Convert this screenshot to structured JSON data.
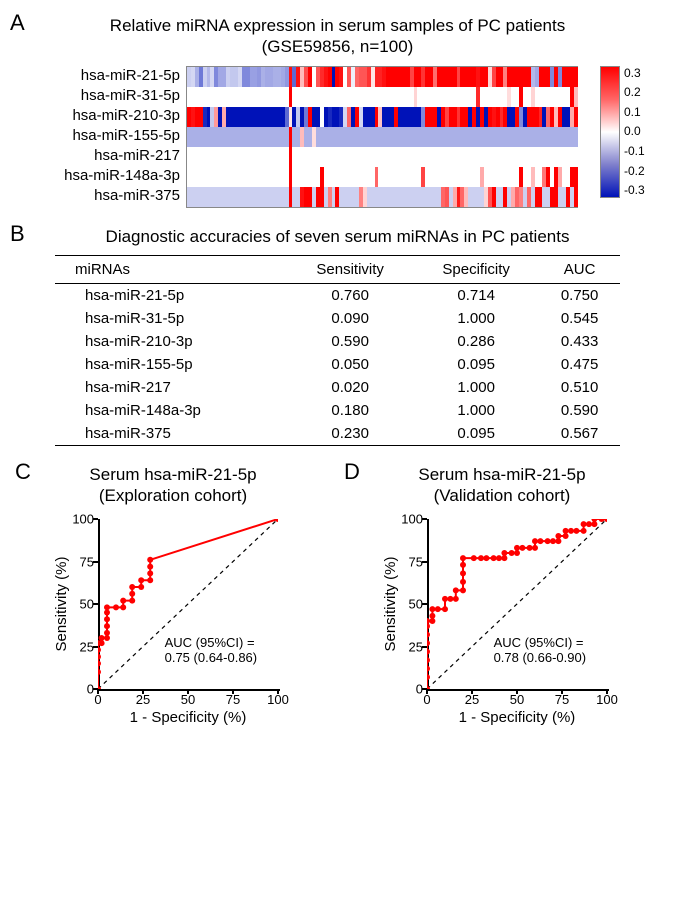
{
  "panelA": {
    "label": "A",
    "title_line1": "Relative miRNA expression in serum samples of PC patients",
    "title_line2": "(GSE59856, n=100)",
    "row_labels": [
      "hsa-miR-21-5p",
      "hsa-miR-31-5p",
      "hsa-miR-210-3p",
      "hsa-miR-155-5p",
      "hsa-miR-217",
      "hsa-miR-148a-3p",
      "hsa-miR-375"
    ],
    "legend_ticks": [
      "0.3",
      "0.2",
      "0.1",
      "0.0",
      "-0.1",
      "-0.2",
      "-0.3"
    ],
    "color_lo": "#0012b8",
    "color_mid": "#ffffff",
    "color_hi": "#ff0000",
    "n_cols": 100,
    "rows_values": [
      [
        -0.06,
        -0.05,
        -0.1,
        -0.17,
        -0.06,
        -0.09,
        -0.05,
        -0.15,
        -0.11,
        -0.11,
        -0.06,
        -0.07,
        -0.07,
        -0.05,
        -0.15,
        -0.15,
        -0.12,
        -0.12,
        -0.13,
        -0.1,
        -0.11,
        -0.11,
        -0.1,
        -0.1,
        -0.11,
        -0.13,
        0.28,
        -0.19,
        0.28,
        0.08,
        0.21,
        0.3,
        0.0,
        0.2,
        0.25,
        0.28,
        0.3,
        -0.3,
        0.3,
        0.28,
        0.0,
        0.2,
        -0.02,
        0.18,
        0.2,
        0.2,
        0.24,
        0.03,
        0.26,
        0.26,
        0.28,
        0.3,
        0.3,
        0.3,
        0.3,
        0.3,
        0.3,
        0.22,
        0.3,
        0.3,
        0.24,
        0.3,
        0.3,
        0.17,
        0.3,
        0.3,
        0.3,
        0.3,
        0.3,
        0.22,
        0.3,
        0.3,
        0.3,
        0.3,
        0.28,
        0.3,
        0.3,
        0.05,
        0.22,
        0.3,
        0.3,
        0.15,
        0.3,
        0.3,
        0.3,
        0.3,
        0.3,
        0.3,
        -0.09,
        -0.11,
        0.3,
        0.3,
        0.3,
        -0.15,
        0.3,
        -0.15,
        0.3,
        0.3,
        0.3,
        0.3
      ],
      [
        0.0,
        0.0,
        0.0,
        0.0,
        0.0,
        0.0,
        0.0,
        0.0,
        0.0,
        0.0,
        0.0,
        0.0,
        0.0,
        0.0,
        0.0,
        0.0,
        0.0,
        0.0,
        0.0,
        0.0,
        0.0,
        0.0,
        0.0,
        0.0,
        0.0,
        0.0,
        0.3,
        0.0,
        0.0,
        0.0,
        0.0,
        0.0,
        0.0,
        0.0,
        0.0,
        0.0,
        0.0,
        0.0,
        0.0,
        0.0,
        0.0,
        0.0,
        0.0,
        0.0,
        0.0,
        0.0,
        0.0,
        0.0,
        0.0,
        0.0,
        0.0,
        0.0,
        0.0,
        0.0,
        0.0,
        0.0,
        0.0,
        0.0,
        0.05,
        0.0,
        0.0,
        0.0,
        0.0,
        0.0,
        0.0,
        0.0,
        0.0,
        0.0,
        0.0,
        0.0,
        0.0,
        0.0,
        0.0,
        0.0,
        0.25,
        0.0,
        0.0,
        0.0,
        0.0,
        0.0,
        0.0,
        0.0,
        0.04,
        0.0,
        0.0,
        0.3,
        0.0,
        0.0,
        0.05,
        0.0,
        0.0,
        0.0,
        0.0,
        0.0,
        0.0,
        0.0,
        0.0,
        0.0,
        0.3,
        0.08
      ],
      [
        0.3,
        0.28,
        0.3,
        0.3,
        -0.27,
        -0.3,
        -0.07,
        0.12,
        -0.3,
        0.1,
        -0.3,
        -0.3,
        -0.3,
        -0.3,
        -0.3,
        -0.3,
        -0.3,
        -0.3,
        -0.3,
        -0.3,
        -0.3,
        -0.3,
        -0.3,
        -0.3,
        -0.3,
        -0.19,
        0.03,
        -0.3,
        -0.07,
        -0.3,
        -0.17,
        0.3,
        -0.3,
        -0.3,
        0.0,
        -0.3,
        -0.27,
        -0.3,
        -0.3,
        -0.27,
        -0.05,
        0.18,
        -0.3,
        0.3,
        -0.05,
        -0.3,
        -0.3,
        -0.3,
        0.3,
        0.07,
        -0.3,
        -0.3,
        -0.3,
        0.3,
        -0.3,
        -0.3,
        -0.3,
        -0.3,
        -0.3,
        -0.3,
        -0.15,
        0.3,
        0.3,
        0.3,
        -0.3,
        0.3,
        0.22,
        0.3,
        0.3,
        0.24,
        0.3,
        0.3,
        -0.3,
        0.3,
        -0.3,
        0.3,
        -0.3,
        0.3,
        0.28,
        0.3,
        0.25,
        0.3,
        -0.3,
        -0.3,
        0.3,
        -0.15,
        -0.3,
        0.3,
        0.3,
        0.3,
        0.26,
        -0.3,
        0.18,
        0.3,
        0.08,
        0.3,
        -0.3,
        -0.3,
        0.1,
        0.3
      ],
      [
        -0.1,
        -0.1,
        -0.1,
        -0.1,
        -0.1,
        -0.1,
        -0.1,
        -0.1,
        -0.1,
        -0.1,
        -0.1,
        -0.1,
        -0.1,
        -0.1,
        -0.1,
        -0.1,
        -0.1,
        -0.1,
        -0.1,
        -0.1,
        -0.1,
        -0.1,
        -0.1,
        -0.1,
        -0.1,
        -0.1,
        0.3,
        -0.1,
        -0.1,
        0.08,
        -0.1,
        -0.1,
        0.04,
        -0.1,
        -0.1,
        -0.1,
        -0.1,
        -0.1,
        -0.1,
        -0.1,
        -0.1,
        -0.1,
        -0.1,
        -0.1,
        -0.1,
        -0.1,
        -0.1,
        -0.1,
        -0.1,
        -0.1,
        -0.1,
        -0.1,
        -0.1,
        -0.1,
        -0.1,
        -0.1,
        -0.1,
        -0.1,
        -0.1,
        -0.1,
        -0.1,
        -0.1,
        -0.1,
        -0.1,
        -0.1,
        -0.1,
        -0.1,
        -0.1,
        -0.1,
        -0.1,
        -0.1,
        -0.1,
        -0.1,
        -0.1,
        -0.1,
        -0.1,
        -0.1,
        -0.1,
        -0.1,
        -0.1,
        -0.1,
        -0.1,
        -0.1,
        -0.1,
        -0.1,
        -0.1,
        -0.1,
        -0.1,
        -0.1,
        -0.1,
        -0.1,
        -0.1,
        -0.1,
        -0.1,
        -0.1,
        -0.1,
        -0.1,
        -0.1,
        -0.1,
        -0.1
      ],
      [
        0.0,
        0.0,
        0.0,
        0.0,
        0.0,
        0.0,
        0.0,
        0.0,
        0.0,
        0.0,
        0.0,
        0.0,
        0.0,
        0.0,
        0.0,
        0.0,
        0.0,
        0.0,
        0.0,
        0.0,
        0.0,
        0.0,
        0.0,
        0.0,
        0.0,
        0.0,
        0.3,
        0.0,
        0.0,
        0.0,
        0.0,
        0.0,
        0.0,
        0.0,
        0.0,
        0.0,
        0.0,
        0.0,
        0.0,
        0.0,
        0.0,
        0.0,
        0.0,
        0.0,
        0.0,
        0.0,
        0.0,
        0.0,
        0.0,
        0.0,
        0.0,
        0.0,
        0.0,
        0.0,
        0.0,
        0.0,
        0.0,
        0.0,
        0.0,
        0.0,
        0.0,
        0.0,
        0.0,
        0.0,
        0.0,
        0.0,
        0.0,
        0.0,
        0.0,
        0.0,
        0.0,
        0.0,
        0.0,
        0.0,
        0.0,
        0.0,
        0.0,
        0.0,
        0.0,
        0.0,
        0.0,
        0.0,
        0.0,
        0.0,
        0.0,
        0.0,
        0.0,
        0.0,
        0.0,
        0.0,
        0.0,
        0.0,
        0.0,
        0.0,
        0.0,
        0.0,
        0.0,
        0.0,
        0.0,
        0.0
      ],
      [
        0.0,
        0.0,
        0.0,
        0.0,
        0.0,
        0.0,
        0.0,
        0.0,
        0.0,
        0.0,
        0.0,
        0.0,
        0.0,
        0.0,
        0.0,
        0.0,
        0.0,
        0.0,
        0.0,
        0.0,
        0.0,
        0.0,
        0.0,
        0.0,
        0.0,
        0.0,
        0.3,
        0.0,
        0.0,
        0.0,
        0.0,
        0.0,
        0.0,
        0.0,
        0.3,
        0.0,
        0.0,
        0.0,
        0.0,
        0.0,
        0.0,
        0.0,
        0.0,
        0.0,
        0.0,
        0.0,
        0.0,
        0.0,
        0.18,
        0.0,
        0.0,
        0.0,
        0.0,
        0.0,
        0.0,
        0.0,
        0.0,
        0.0,
        0.0,
        0.0,
        0.22,
        0.0,
        0.0,
        0.0,
        0.0,
        0.0,
        0.0,
        0.0,
        0.0,
        0.0,
        0.0,
        0.0,
        0.0,
        0.0,
        0.0,
        0.1,
        0.0,
        0.0,
        0.0,
        0.0,
        0.0,
        0.0,
        0.0,
        0.0,
        0.0,
        0.3,
        0.0,
        0.0,
        0.08,
        0.0,
        0.0,
        0.16,
        0.3,
        0.0,
        0.3,
        0.1,
        0.0,
        0.0,
        0.3,
        0.3
      ],
      [
        -0.06,
        -0.06,
        -0.06,
        -0.06,
        -0.06,
        -0.06,
        -0.06,
        -0.06,
        -0.06,
        -0.06,
        -0.06,
        -0.06,
        -0.06,
        -0.06,
        -0.06,
        -0.06,
        -0.06,
        -0.06,
        -0.06,
        -0.06,
        -0.06,
        -0.06,
        -0.06,
        -0.06,
        -0.06,
        -0.06,
        0.3,
        -0.06,
        -0.06,
        0.28,
        0.3,
        0.3,
        -0.06,
        0.3,
        0.3,
        -0.06,
        0.15,
        -0.06,
        0.3,
        -0.06,
        -0.06,
        -0.06,
        -0.06,
        -0.06,
        0.15,
        0.05,
        -0.06,
        -0.06,
        -0.06,
        -0.06,
        -0.06,
        -0.06,
        -0.06,
        -0.06,
        -0.06,
        -0.06,
        -0.06,
        -0.06,
        -0.06,
        -0.06,
        -0.06,
        -0.06,
        -0.06,
        -0.06,
        -0.06,
        0.18,
        0.2,
        -0.06,
        0.1,
        0.27,
        0.18,
        0.08,
        -0.06,
        -0.06,
        -0.06,
        -0.06,
        0.05,
        0.2,
        0.3,
        -0.06,
        -0.06,
        0.3,
        -0.06,
        0.1,
        0.18,
        0.15,
        -0.06,
        0.18,
        -0.06,
        0.3,
        0.3,
        -0.06,
        -0.06,
        0.3,
        0.3,
        -0.06,
        -0.06,
        0.3,
        -0.06,
        0.3
      ]
    ]
  },
  "panelB": {
    "label": "B",
    "title": "Diagnostic accuracies of seven serum miRNAs in PC patients",
    "columns": [
      "miRNAs",
      "Sensitivity",
      "Specificity",
      "AUC"
    ],
    "rows": [
      [
        "hsa-miR-21-5p",
        "0.760",
        "0.714",
        "0.750"
      ],
      [
        "hsa-miR-31-5p",
        "0.090",
        "1.000",
        "0.545"
      ],
      [
        "hsa-miR-210-3p",
        "0.590",
        "0.286",
        "0.433"
      ],
      [
        "hsa-miR-155-5p",
        "0.050",
        "0.095",
        "0.475"
      ],
      [
        "hsa-miR-217",
        "0.020",
        "1.000",
        "0.510"
      ],
      [
        "hsa-miR-148a-3p",
        "0.180",
        "1.000",
        "0.590"
      ],
      [
        "hsa-miR-375",
        "0.230",
        "0.095",
        "0.567"
      ]
    ]
  },
  "panelC": {
    "label": "C",
    "title_line1": "Serum hsa-miR-21-5p",
    "title_line2": "(Exploration cohort)",
    "ylabel": "Sensitivity (%)",
    "xlabel": "1 - Specificity (%)",
    "yticks": [
      "0",
      "25",
      "50",
      "75",
      "100"
    ],
    "xticks": [
      "0",
      "25",
      "50",
      "75",
      "100"
    ],
    "auc_line1": "AUC (95%CI) =",
    "auc_line2": "0.75 (0.64-0.86)",
    "line_color": "#ff0000",
    "roc_points": [
      [
        0,
        0
      ],
      [
        0,
        10
      ],
      [
        0,
        15
      ],
      [
        0,
        19
      ],
      [
        0,
        23
      ],
      [
        0,
        27
      ],
      [
        2,
        27
      ],
      [
        2,
        30
      ],
      [
        5,
        30
      ],
      [
        5,
        33
      ],
      [
        5,
        37
      ],
      [
        5,
        41
      ],
      [
        5,
        45
      ],
      [
        5,
        48
      ],
      [
        10,
        48
      ],
      [
        14,
        48
      ],
      [
        14,
        52
      ],
      [
        19,
        52
      ],
      [
        19,
        56
      ],
      [
        19,
        60
      ],
      [
        24,
        60
      ],
      [
        24,
        64
      ],
      [
        29,
        64
      ],
      [
        29,
        68
      ],
      [
        29,
        72
      ],
      [
        29,
        76
      ],
      [
        100,
        100
      ]
    ]
  },
  "panelD": {
    "label": "D",
    "title_line1": "Serum hsa-miR-21-5p",
    "title_line2": "(Validation cohort)",
    "ylabel": "Sensitivity (%)",
    "xlabel": "1 - Specificity (%)",
    "yticks": [
      "0",
      "25",
      "50",
      "75",
      "100"
    ],
    "xticks": [
      "0",
      "25",
      "50",
      "75",
      "100"
    ],
    "auc_line1": "AUC (95%CI) =",
    "auc_line2": "0.78 (0.66-0.90)",
    "line_color": "#ff0000",
    "roc_points": [
      [
        0,
        0
      ],
      [
        0,
        7
      ],
      [
        0,
        12
      ],
      [
        0,
        17
      ],
      [
        0,
        22
      ],
      [
        0,
        27
      ],
      [
        0,
        32
      ],
      [
        0,
        37
      ],
      [
        0,
        40
      ],
      [
        3,
        40
      ],
      [
        3,
        43
      ],
      [
        3,
        47
      ],
      [
        6,
        47
      ],
      [
        10,
        47
      ],
      [
        10,
        53
      ],
      [
        13,
        53
      ],
      [
        16,
        53
      ],
      [
        16,
        58
      ],
      [
        20,
        58
      ],
      [
        20,
        63
      ],
      [
        20,
        68
      ],
      [
        20,
        73
      ],
      [
        20,
        77
      ],
      [
        26,
        77
      ],
      [
        30,
        77
      ],
      [
        33,
        77
      ],
      [
        37,
        77
      ],
      [
        40,
        77
      ],
      [
        43,
        77
      ],
      [
        43,
        80
      ],
      [
        47,
        80
      ],
      [
        50,
        80
      ],
      [
        50,
        83
      ],
      [
        53,
        83
      ],
      [
        57,
        83
      ],
      [
        60,
        83
      ],
      [
        60,
        87
      ],
      [
        63,
        87
      ],
      [
        67,
        87
      ],
      [
        70,
        87
      ],
      [
        73,
        87
      ],
      [
        73,
        90
      ],
      [
        77,
        90
      ],
      [
        77,
        93
      ],
      [
        80,
        93
      ],
      [
        83,
        93
      ],
      [
        87,
        93
      ],
      [
        87,
        97
      ],
      [
        90,
        97
      ],
      [
        93,
        97
      ],
      [
        93,
        100
      ],
      [
        97,
        100
      ],
      [
        100,
        100
      ]
    ]
  }
}
